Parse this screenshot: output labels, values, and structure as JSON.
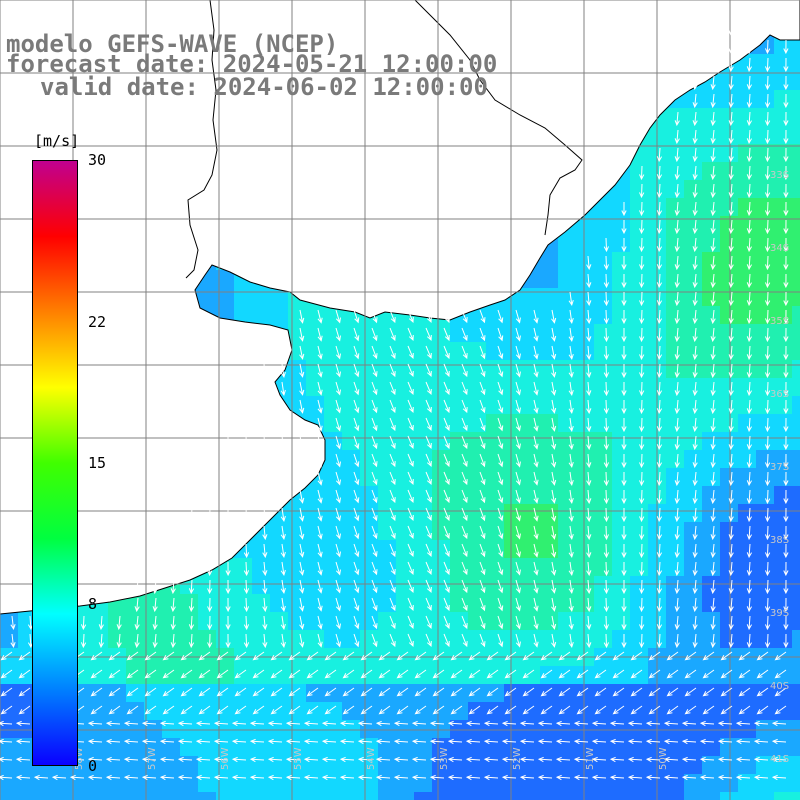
{
  "title": {
    "line1": "modelo GEFS-WAVE (NCEP)",
    "line2": "forecast date: 2024-05-21 12:00:00",
    "line3": "valid date: 2024-06-02 12:00:00"
  },
  "colorbar": {
    "unit": "[m/s]",
    "ticks": [
      {
        "label": "30",
        "value": 30
      },
      {
        "label": "22",
        "value": 22
      },
      {
        "label": "15",
        "value": 15
      },
      {
        "label": "8",
        "value": 8
      },
      {
        "label": "0",
        "value": 0
      }
    ],
    "colors": [
      "#0a00ff",
      "#0080ff",
      "#00ffff",
      "#00ff40",
      "#40ff00",
      "#ffff00",
      "#ff8000",
      "#ff0000",
      "#c00090"
    ]
  },
  "map": {
    "variable": "wind speed and direction",
    "land_color": "#ffffff",
    "coastline_color": "#000000",
    "grid_color": "#808080",
    "arrow_color": "#ffffff",
    "lat_labels": [
      "33S",
      "34S",
      "35S",
      "36S",
      "37S",
      "38S",
      "39S",
      "40S",
      "41S"
    ],
    "lon_labels": [
      "58W",
      "57W",
      "56W",
      "55W",
      "54W",
      "53W",
      "52W",
      "51W",
      "50W"
    ]
  }
}
